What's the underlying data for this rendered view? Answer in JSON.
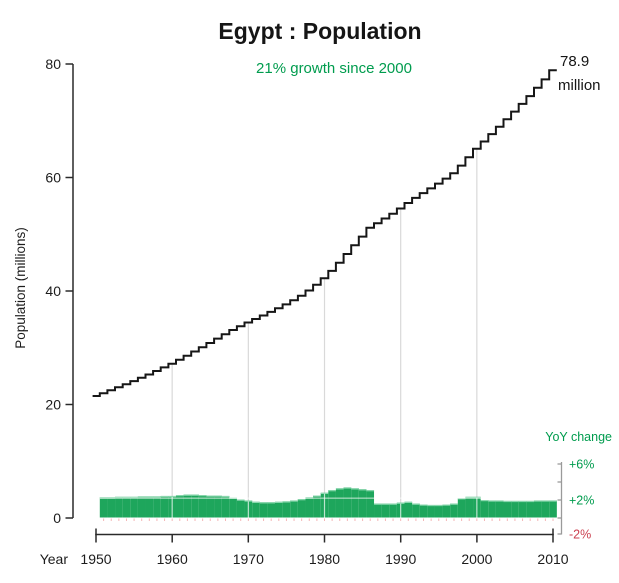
{
  "title": "Egypt :  Population",
  "subtitle": "21% growth since 2000",
  "end_label": {
    "value": "78.9",
    "unit": "million"
  },
  "colors": {
    "bar_green": "#1ea65c",
    "bar_cap_green": "#8ad7ae",
    "text_green": "#009c4e",
    "neg_red": "#cb4150",
    "step_line": "#161616",
    "gridline": "#d9d9d9",
    "axis": "#2a2a2a",
    "year_tick_pink": "#f3b6b6"
  },
  "chart_data": {
    "type": "line",
    "subtype": "step-line with yoy bar panel",
    "title": "Egypt :  Population",
    "subtitle": "21% growth since 2000",
    "xlabel": "Year",
    "ylabel": "Population (millions)",
    "x_ticks": [
      1950,
      1960,
      1970,
      1980,
      1990,
      2000,
      2010
    ],
    "y_ticks": [
      0,
      20,
      40,
      60,
      80
    ],
    "xlim": [
      1950,
      2010
    ],
    "ylim": [
      0,
      80
    ],
    "grid": "vertical decade gridlines only",
    "legend_position": "none",
    "annotation": "78.9 million at 2010",
    "reference_line_pct": 2.2,
    "start_year": 1950,
    "series": [
      {
        "name": "Population (millions)",
        "type": "step",
        "first_year": 1950,
        "values": [
          21.5,
          21.99,
          22.5,
          23.03,
          23.57,
          24.12,
          24.7,
          25.29,
          25.9,
          26.53,
          27.18,
          27.87,
          28.6,
          29.34,
          30.09,
          30.84,
          31.61,
          32.39,
          33.12,
          33.79,
          34.45,
          35.07,
          35.68,
          36.31,
          36.96,
          37.64,
          38.38,
          39.18,
          40.08,
          41.09,
          42.24,
          43.55,
          44.99,
          46.52,
          48.05,
          49.59,
          51.13,
          51.95,
          52.78,
          53.62,
          54.53,
          55.51,
          56.4,
          57.25,
          58.08,
          58.92,
          59.8,
          60.76,
          62.1,
          63.56,
          65.05,
          66.35,
          67.64,
          68.96,
          70.27,
          71.61,
          72.97,
          74.35,
          75.8,
          77.28,
          78.9
        ]
      },
      {
        "name": "YoY change (%)",
        "type": "bar",
        "first_year": 1951,
        "values": [
          2.3,
          2.3,
          2.35,
          2.35,
          2.35,
          2.4,
          2.4,
          2.4,
          2.45,
          2.45,
          2.55,
          2.6,
          2.6,
          2.55,
          2.5,
          2.5,
          2.45,
          2.25,
          2.05,
          1.95,
          1.8,
          1.75,
          1.75,
          1.8,
          1.85,
          1.95,
          2.1,
          2.3,
          2.5,
          2.8,
          3.1,
          3.3,
          3.4,
          3.3,
          3.2,
          3.1,
          1.6,
          1.6,
          1.6,
          1.7,
          1.8,
          1.6,
          1.5,
          1.45,
          1.45,
          1.5,
          1.6,
          2.2,
          2.35,
          2.35,
          2.0,
          1.95,
          1.95,
          1.9,
          1.9,
          1.9,
          1.9,
          1.95,
          1.95,
          1.95
        ]
      }
    ],
    "secondary_axis": {
      "label": "YoY change",
      "tick_labels": [
        "+6%",
        "+2%",
        "-2%"
      ],
      "tick_values": [
        6,
        2,
        -2
      ],
      "minor_tick_values": [
        6,
        4,
        2,
        0,
        -2
      ],
      "range": [
        -2,
        6
      ]
    }
  }
}
